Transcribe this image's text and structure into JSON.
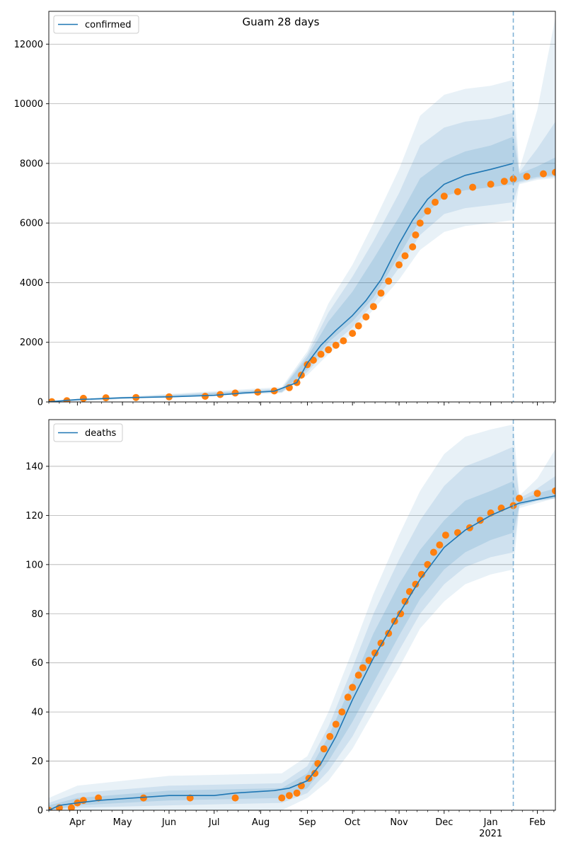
{
  "title": "Guam 28 days",
  "colors": {
    "model": "#1f77b4",
    "observed": "#ff7f0e",
    "band": "#1f77b4",
    "grid": "#b0b0b0",
    "forecast_line": "#7fb2d6"
  },
  "x_axis": {
    "start": "2020-03-13",
    "end": "2021-02-13",
    "month_labels": [
      {
        "date": "2020-04-01",
        "label": "Apr"
      },
      {
        "date": "2020-05-01",
        "label": "May"
      },
      {
        "date": "2020-06-01",
        "label": "Jun"
      },
      {
        "date": "2020-07-01",
        "label": "Jul"
      },
      {
        "date": "2020-08-01",
        "label": "Aug"
      },
      {
        "date": "2020-09-01",
        "label": "Sep"
      },
      {
        "date": "2020-10-01",
        "label": "Oct"
      },
      {
        "date": "2020-11-01",
        "label": "Nov"
      },
      {
        "date": "2020-12-01",
        "label": "Dec"
      },
      {
        "date": "2021-01-01",
        "label": "Jan"
      },
      {
        "date": "2021-02-01",
        "label": "Feb"
      }
    ],
    "year_label": {
      "date": "2021-01-01",
      "label": "2021"
    }
  },
  "chart_data": [
    {
      "type": "line",
      "legend": "confirmed",
      "legend_position": "top-left",
      "grid": "horizontal",
      "ylim": [
        0,
        13100
      ],
      "yticks": [
        0,
        2000,
        4000,
        6000,
        8000,
        10000,
        12000
      ],
      "forecast_start": "2021-01-16",
      "model_line": [
        [
          "2020-03-13",
          5
        ],
        [
          "2020-04-01",
          80
        ],
        [
          "2020-05-01",
          140
        ],
        [
          "2020-06-01",
          170
        ],
        [
          "2020-07-01",
          220
        ],
        [
          "2020-07-20",
          300
        ],
        [
          "2020-08-10",
          360
        ],
        [
          "2020-08-25",
          650
        ],
        [
          "2020-09-01",
          1300
        ],
        [
          "2020-09-10",
          1900
        ],
        [
          "2020-09-20",
          2400
        ],
        [
          "2020-10-01",
          2900
        ],
        [
          "2020-10-10",
          3400
        ],
        [
          "2020-10-20",
          4100
        ],
        [
          "2020-11-01",
          5300
        ],
        [
          "2020-11-10",
          6100
        ],
        [
          "2020-11-20",
          6800
        ],
        [
          "2020-12-01",
          7300
        ],
        [
          "2020-12-15",
          7600
        ],
        [
          "2021-01-01",
          7800
        ],
        [
          "2021-01-16",
          8000
        ]
      ],
      "bands": [
        {
          "level": "outer",
          "points": [
            [
              "2020-03-13",
              0,
              20
            ],
            [
              "2020-08-15",
              300,
              500
            ],
            [
              "2020-09-01",
              900,
              1700
            ],
            [
              "2020-09-15",
              1600,
              3300
            ],
            [
              "2020-10-01",
              2300,
              4600
            ],
            [
              "2020-10-15",
              3100,
              6000
            ],
            [
              "2020-11-01",
              4100,
              7800
            ],
            [
              "2020-11-15",
              5100,
              9600
            ],
            [
              "2020-12-01",
              5700,
              10300
            ],
            [
              "2020-12-15",
              5900,
              10500
            ],
            [
              "2021-01-01",
              6000,
              10600
            ],
            [
              "2021-01-16",
              6100,
              10800
            ],
            [
              "2021-01-20",
              7300,
              7800
            ],
            [
              "2021-02-01",
              7450,
              9800
            ],
            [
              "2021-02-13",
              7500,
              12900
            ]
          ]
        },
        {
          "level": "middle",
          "points": [
            [
              "2020-03-13",
              0,
              15
            ],
            [
              "2020-08-15",
              320,
              450
            ],
            [
              "2020-09-01",
              1000,
              1600
            ],
            [
              "2020-09-15",
              1800,
              3000
            ],
            [
              "2020-10-01",
              2500,
              4200
            ],
            [
              "2020-10-15",
              3300,
              5400
            ],
            [
              "2020-11-01",
              4500,
              7000
            ],
            [
              "2020-11-15",
              5600,
              8600
            ],
            [
              "2020-12-01",
              6300,
              9200
            ],
            [
              "2020-12-15",
              6500,
              9400
            ],
            [
              "2021-01-01",
              6600,
              9500
            ],
            [
              "2021-01-16",
              6700,
              9700
            ],
            [
              "2021-01-20",
              7350,
              7700
            ],
            [
              "2021-02-01",
              7500,
              8500
            ],
            [
              "2021-02-13",
              7550,
              9400
            ]
          ]
        },
        {
          "level": "inner",
          "points": [
            [
              "2020-03-13",
              0,
              10
            ],
            [
              "2020-08-15",
              340,
              420
            ],
            [
              "2020-09-01",
              1100,
              1500
            ],
            [
              "2020-09-15",
              2000,
              2700
            ],
            [
              "2020-10-01",
              2700,
              3700
            ],
            [
              "2020-10-15",
              3500,
              4800
            ],
            [
              "2020-11-01",
              4900,
              6200
            ],
            [
              "2020-11-15",
              6100,
              7500
            ],
            [
              "2020-12-01",
              6900,
              8100
            ],
            [
              "2020-12-15",
              7100,
              8400
            ],
            [
              "2021-01-01",
              7200,
              8600
            ],
            [
              "2021-01-16",
              7300,
              8900
            ],
            [
              "2021-01-20",
              7400,
              7650
            ],
            [
              "2021-02-01",
              7550,
              7900
            ],
            [
              "2021-02-13",
              7600,
              8200
            ]
          ]
        }
      ],
      "observed": [
        [
          "2020-03-15",
          10
        ],
        [
          "2020-03-25",
          40
        ],
        [
          "2020-04-05",
          120
        ],
        [
          "2020-04-20",
          140
        ],
        [
          "2020-05-10",
          150
        ],
        [
          "2020-06-01",
          170
        ],
        [
          "2020-06-25",
          190
        ],
        [
          "2020-07-05",
          250
        ],
        [
          "2020-07-15",
          300
        ],
        [
          "2020-07-30",
          330
        ],
        [
          "2020-08-10",
          370
        ],
        [
          "2020-08-20",
          480
        ],
        [
          "2020-08-25",
          650
        ],
        [
          "2020-08-28",
          900
        ],
        [
          "2020-09-01",
          1250
        ],
        [
          "2020-09-05",
          1400
        ],
        [
          "2020-09-10",
          1600
        ],
        [
          "2020-09-15",
          1750
        ],
        [
          "2020-09-20",
          1900
        ],
        [
          "2020-09-25",
          2050
        ],
        [
          "2020-10-01",
          2300
        ],
        [
          "2020-10-05",
          2550
        ],
        [
          "2020-10-10",
          2850
        ],
        [
          "2020-10-15",
          3200
        ],
        [
          "2020-10-20",
          3650
        ],
        [
          "2020-10-25",
          4050
        ],
        [
          "2020-11-01",
          4600
        ],
        [
          "2020-11-05",
          4900
        ],
        [
          "2020-11-10",
          5200
        ],
        [
          "2020-11-12",
          5600
        ],
        [
          "2020-11-15",
          6000
        ],
        [
          "2020-11-20",
          6400
        ],
        [
          "2020-11-25",
          6700
        ],
        [
          "2020-12-01",
          6900
        ],
        [
          "2020-12-10",
          7050
        ],
        [
          "2020-12-20",
          7200
        ],
        [
          "2021-01-01",
          7300
        ],
        [
          "2021-01-10",
          7400
        ],
        [
          "2021-01-16",
          7480
        ],
        [
          "2021-01-25",
          7560
        ],
        [
          "2021-02-05",
          7650
        ],
        [
          "2021-02-13",
          7700
        ]
      ]
    },
    {
      "type": "line",
      "legend": "deaths",
      "legend_position": "top-left",
      "grid": "horizontal",
      "ylim": [
        0,
        159
      ],
      "yticks": [
        0,
        20,
        40,
        60,
        80,
        100,
        120,
        140
      ],
      "forecast_start": "2021-01-16",
      "model_line": [
        [
          "2020-03-13",
          0
        ],
        [
          "2020-03-20",
          2
        ],
        [
          "2020-04-01",
          3
        ],
        [
          "2020-04-15",
          4
        ],
        [
          "2020-06-01",
          6
        ],
        [
          "2020-07-01",
          6
        ],
        [
          "2020-07-15",
          7
        ],
        [
          "2020-08-10",
          8
        ],
        [
          "2020-08-20",
          9
        ],
        [
          "2020-09-01",
          12
        ],
        [
          "2020-09-10",
          19
        ],
        [
          "2020-09-20",
          30
        ],
        [
          "2020-10-01",
          45
        ],
        [
          "2020-10-15",
          62
        ],
        [
          "2020-11-01",
          80
        ],
        [
          "2020-11-15",
          94
        ],
        [
          "2020-12-01",
          107
        ],
        [
          "2020-12-15",
          114
        ],
        [
          "2021-01-01",
          120
        ],
        [
          "2021-01-16",
          124
        ],
        [
          "2021-01-20",
          125
        ],
        [
          "2021-02-13",
          128
        ]
      ],
      "bands": [
        {
          "level": "outer",
          "points": [
            [
              "2020-03-13",
              0,
              5
            ],
            [
              "2020-04-01",
              0,
              10
            ],
            [
              "2020-06-01",
              0,
              14
            ],
            [
              "2020-08-15",
              0,
              15
            ],
            [
              "2020-09-01",
              5,
              22
            ],
            [
              "2020-09-15",
              12,
              40
            ],
            [
              "2020-10-01",
              25,
              65
            ],
            [
              "2020-10-15",
              40,
              88
            ],
            [
              "2020-11-01",
              58,
              112
            ],
            [
              "2020-11-15",
              74,
              130
            ],
            [
              "2020-12-01",
              85,
              145
            ],
            [
              "2020-12-15",
              92,
              152
            ],
            [
              "2021-01-01",
              96,
              155
            ],
            [
              "2021-01-16",
              98,
              157
            ],
            [
              "2021-01-20",
              123,
              128
            ],
            [
              "2021-02-01",
              125,
              135
            ],
            [
              "2021-02-13",
              127,
              147
            ]
          ]
        },
        {
          "level": "middle",
          "points": [
            [
              "2020-03-13",
              0,
              3
            ],
            [
              "2020-04-01",
              1,
              7
            ],
            [
              "2020-06-01",
              2,
              10
            ],
            [
              "2020-08-15",
              3,
              11
            ],
            [
              "2020-09-01",
              7,
              18
            ],
            [
              "2020-09-15",
              16,
              34
            ],
            [
              "2020-10-01",
              30,
              58
            ],
            [
              "2020-10-15",
              46,
              80
            ],
            [
              "2020-11-01",
              65,
              102
            ],
            [
              "2020-11-15",
              80,
              118
            ],
            [
              "2020-12-01",
              92,
              132
            ],
            [
              "2020-12-15",
              99,
              140
            ],
            [
              "2021-01-01",
              103,
              144
            ],
            [
              "2021-01-16",
              105,
              148
            ],
            [
              "2021-01-20",
              124,
              127
            ],
            [
              "2021-02-01",
              126,
              131
            ],
            [
              "2021-02-13",
              127,
              136
            ]
          ]
        },
        {
          "level": "inner",
          "points": [
            [
              "2020-03-13",
              0,
              2
            ],
            [
              "2020-04-01",
              2,
              5
            ],
            [
              "2020-06-01",
              4,
              8
            ],
            [
              "2020-08-15",
              5,
              9
            ],
            [
              "2020-09-01",
              9,
              15
            ],
            [
              "2020-09-15",
              20,
              30
            ],
            [
              "2020-10-01",
              36,
              52
            ],
            [
              "2020-10-15",
              52,
              72
            ],
            [
              "2020-11-01",
              71,
              92
            ],
            [
              "2020-11-15",
              86,
              106
            ],
            [
              "2020-12-01",
              98,
              118
            ],
            [
              "2020-12-15",
              105,
              126
            ],
            [
              "2021-01-01",
              110,
              130
            ],
            [
              "2021-01-16",
              113,
              134
            ],
            [
              "2021-01-20",
              124,
              126
            ],
            [
              "2021-02-01",
              126,
              129
            ],
            [
              "2021-02-13",
              127,
              131
            ]
          ]
        }
      ],
      "observed": [
        [
          "2020-03-13",
          0
        ],
        [
          "2020-03-20",
          1
        ],
        [
          "2020-03-28",
          1
        ],
        [
          "2020-04-01",
          3
        ],
        [
          "2020-04-05",
          4
        ],
        [
          "2020-04-15",
          5
        ],
        [
          "2020-05-15",
          5
        ],
        [
          "2020-06-15",
          5
        ],
        [
          "2020-07-15",
          5
        ],
        [
          "2020-08-15",
          5
        ],
        [
          "2020-08-20",
          6
        ],
        [
          "2020-08-25",
          7
        ],
        [
          "2020-08-28",
          10
        ],
        [
          "2020-09-02",
          13
        ],
        [
          "2020-09-06",
          15
        ],
        [
          "2020-09-08",
          19
        ],
        [
          "2020-09-12",
          25
        ],
        [
          "2020-09-16",
          30
        ],
        [
          "2020-09-20",
          35
        ],
        [
          "2020-09-24",
          40
        ],
        [
          "2020-09-28",
          46
        ],
        [
          "2020-10-01",
          50
        ],
        [
          "2020-10-05",
          55
        ],
        [
          "2020-10-08",
          58
        ],
        [
          "2020-10-12",
          61
        ],
        [
          "2020-10-16",
          64
        ],
        [
          "2020-10-20",
          68
        ],
        [
          "2020-10-25",
          72
        ],
        [
          "2020-10-29",
          77
        ],
        [
          "2020-11-02",
          80
        ],
        [
          "2020-11-05",
          85
        ],
        [
          "2020-11-08",
          89
        ],
        [
          "2020-11-12",
          92
        ],
        [
          "2020-11-16",
          96
        ],
        [
          "2020-11-20",
          100
        ],
        [
          "2020-11-24",
          105
        ],
        [
          "2020-11-28",
          108
        ],
        [
          "2020-12-02",
          112
        ],
        [
          "2020-12-10",
          113
        ],
        [
          "2020-12-18",
          115
        ],
        [
          "2020-12-25",
          118
        ],
        [
          "2021-01-01",
          121
        ],
        [
          "2021-01-08",
          123
        ],
        [
          "2021-01-16",
          124
        ],
        [
          "2021-01-20",
          127
        ],
        [
          "2021-02-01",
          129
        ],
        [
          "2021-02-13",
          130
        ]
      ]
    }
  ]
}
